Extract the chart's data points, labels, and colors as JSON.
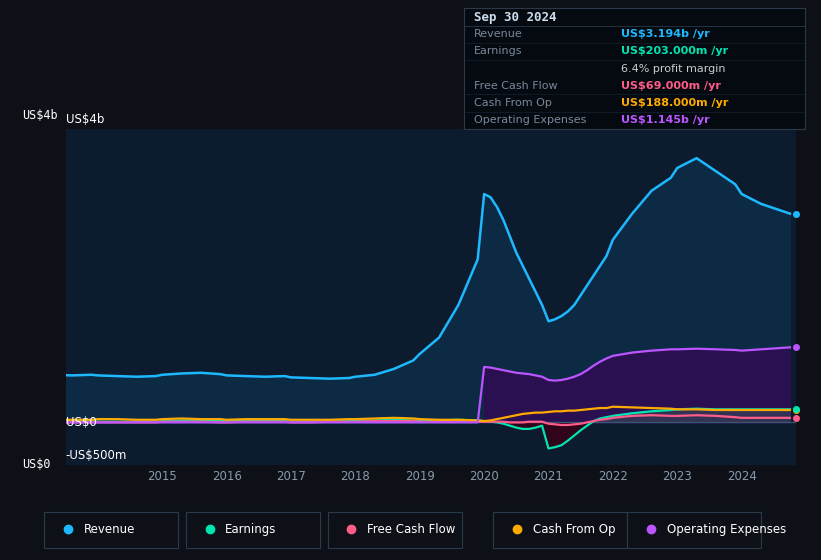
{
  "bg_color": "#0d1117",
  "plot_bg_color": "#0d1b2e",
  "grid_color": "#1a3050",
  "revenue_color": "#1eb8ff",
  "earnings_color": "#00e5b0",
  "fcf_color": "#ff5c8a",
  "cashop_color": "#ffaa00",
  "opex_color": "#bb55ff",
  "revenue_fill": "#0d2a45",
  "opex_fill": "#2a1050",
  "years": [
    2013.0,
    2013.3,
    2013.6,
    2013.9,
    2014.0,
    2014.3,
    2014.6,
    2014.9,
    2015.0,
    2015.3,
    2015.6,
    2015.9,
    2016.0,
    2016.3,
    2016.6,
    2016.9,
    2017.0,
    2017.3,
    2017.6,
    2017.9,
    2018.0,
    2018.3,
    2018.6,
    2018.9,
    2019.0,
    2019.3,
    2019.6,
    2019.9,
    2020.0,
    2020.1,
    2020.2,
    2020.3,
    2020.4,
    2020.5,
    2020.6,
    2020.7,
    2020.8,
    2020.9,
    2021.0,
    2021.1,
    2021.2,
    2021.3,
    2021.4,
    2021.5,
    2021.6,
    2021.7,
    2021.8,
    2021.9,
    2022.0,
    2022.3,
    2022.6,
    2022.9,
    2023.0,
    2023.3,
    2023.6,
    2023.9,
    2024.0,
    2024.3,
    2024.6,
    2024.75
  ],
  "revenue": [
    0.75,
    0.73,
    0.72,
    0.73,
    0.72,
    0.71,
    0.7,
    0.71,
    0.73,
    0.75,
    0.76,
    0.74,
    0.72,
    0.71,
    0.7,
    0.71,
    0.69,
    0.68,
    0.67,
    0.68,
    0.7,
    0.73,
    0.82,
    0.95,
    1.05,
    1.3,
    1.8,
    2.5,
    3.5,
    3.45,
    3.3,
    3.1,
    2.85,
    2.6,
    2.4,
    2.2,
    2.0,
    1.8,
    1.55,
    1.58,
    1.63,
    1.7,
    1.8,
    1.95,
    2.1,
    2.25,
    2.4,
    2.55,
    2.8,
    3.2,
    3.55,
    3.75,
    3.9,
    4.05,
    3.85,
    3.65,
    3.5,
    3.35,
    3.25,
    3.2
  ],
  "earnings": [
    0.02,
    0.01,
    0.02,
    0.02,
    0.01,
    0.01,
    0.01,
    0.01,
    0.02,
    0.03,
    0.03,
    0.02,
    0.02,
    0.02,
    0.02,
    0.02,
    0.01,
    0.01,
    0.01,
    0.02,
    0.02,
    0.03,
    0.04,
    0.03,
    0.03,
    0.03,
    0.04,
    0.03,
    0.02,
    0.01,
    0.0,
    -0.02,
    -0.05,
    -0.08,
    -0.1,
    -0.1,
    -0.08,
    -0.05,
    -0.4,
    -0.38,
    -0.35,
    -0.28,
    -0.2,
    -0.12,
    -0.05,
    0.02,
    0.06,
    0.08,
    0.1,
    0.14,
    0.17,
    0.19,
    0.2,
    0.21,
    0.2,
    0.2,
    0.2,
    0.2,
    0.2,
    0.2
  ],
  "fcf": [
    0.0,
    0.0,
    0.0,
    0.0,
    0.0,
    0.0,
    0.0,
    0.0,
    0.01,
    0.01,
    0.01,
    0.0,
    0.0,
    0.01,
    0.01,
    0.01,
    0.0,
    0.0,
    0.01,
    0.01,
    0.01,
    0.02,
    0.02,
    0.02,
    0.01,
    0.01,
    0.02,
    0.01,
    0.01,
    0.01,
    0.01,
    0.01,
    0.0,
    0.0,
    0.0,
    0.01,
    0.01,
    0.01,
    -0.02,
    -0.03,
    -0.04,
    -0.04,
    -0.03,
    -0.02,
    0.0,
    0.02,
    0.04,
    0.05,
    0.07,
    0.1,
    0.11,
    0.1,
    0.1,
    0.11,
    0.1,
    0.08,
    0.07,
    0.07,
    0.07,
    0.07
  ],
  "cashop": [
    0.04,
    0.04,
    0.04,
    0.04,
    0.05,
    0.05,
    0.04,
    0.04,
    0.05,
    0.06,
    0.05,
    0.05,
    0.04,
    0.05,
    0.05,
    0.05,
    0.04,
    0.04,
    0.04,
    0.05,
    0.05,
    0.06,
    0.07,
    0.06,
    0.05,
    0.04,
    0.04,
    0.03,
    0.02,
    0.03,
    0.05,
    0.07,
    0.09,
    0.11,
    0.13,
    0.14,
    0.15,
    0.15,
    0.16,
    0.17,
    0.17,
    0.18,
    0.18,
    0.19,
    0.2,
    0.21,
    0.22,
    0.22,
    0.24,
    0.23,
    0.22,
    0.21,
    0.2,
    0.2,
    0.19,
    0.19,
    0.19,
    0.19,
    0.19,
    0.19
  ],
  "opex": [
    0.0,
    0.0,
    0.0,
    0.0,
    0.0,
    0.0,
    0.0,
    0.0,
    0.0,
    0.0,
    0.0,
    0.0,
    0.0,
    0.0,
    0.0,
    0.0,
    0.0,
    0.0,
    0.0,
    0.0,
    0.0,
    0.0,
    0.0,
    0.0,
    0.0,
    0.0,
    0.0,
    0.0,
    0.85,
    0.84,
    0.82,
    0.8,
    0.78,
    0.76,
    0.75,
    0.74,
    0.72,
    0.7,
    0.65,
    0.64,
    0.65,
    0.67,
    0.7,
    0.74,
    0.8,
    0.87,
    0.93,
    0.98,
    1.02,
    1.07,
    1.1,
    1.12,
    1.12,
    1.13,
    1.12,
    1.11,
    1.1,
    1.12,
    1.14,
    1.15
  ],
  "xlim": [
    2013.5,
    2024.85
  ],
  "ylim": [
    -0.65,
    4.5
  ],
  "y_grid_vals": [
    4.0,
    3.0,
    2.0,
    1.0,
    0.0,
    -0.5
  ],
  "legend_items": [
    "Revenue",
    "Earnings",
    "Free Cash Flow",
    "Cash From Op",
    "Operating Expenses"
  ],
  "legend_colors": [
    "#1eb8ff",
    "#00e5b0",
    "#ff5c8a",
    "#ffaa00",
    "#bb55ff"
  ],
  "tooltip_date": "Sep 30 2024",
  "tooltip_revenue_label": "Revenue",
  "tooltip_revenue_val": "US$3.194b /yr",
  "tooltip_earnings_label": "Earnings",
  "tooltip_earnings_val": "US$203.000m /yr",
  "tooltip_margin": "6.4% profit margin",
  "tooltip_fcf_label": "Free Cash Flow",
  "tooltip_fcf_val": "US$69.000m /yr",
  "tooltip_cashop_label": "Cash From Op",
  "tooltip_cashop_val": "US$188.000m /yr",
  "tooltip_opex_label": "Operating Expenses",
  "tooltip_opex_val": "US$1.145b /yr"
}
